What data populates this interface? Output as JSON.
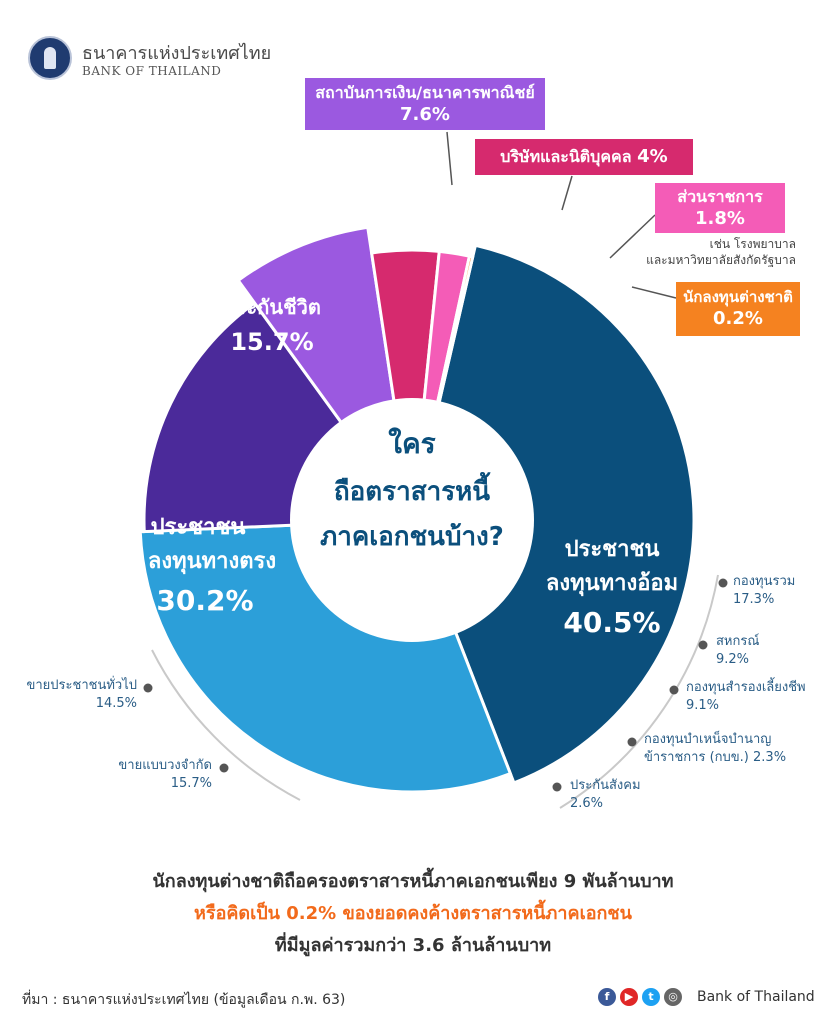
{
  "header": {
    "brand_th": "ธนาคารแห่งประเทศไทย",
    "brand_en": "BANK OF THAILAND"
  },
  "center": {
    "line1": "ใคร",
    "line2": "ถือตราสารหนี้",
    "line3": "ภาคเอกชนบ้าง?"
  },
  "chart_data": {
    "type": "pie",
    "variant": "donut",
    "title": "ใครถือตราสารหนี้ภาคเอกชนบ้าง?",
    "unit": "%",
    "slices": [
      {
        "label": "ประชาชนลงทุนทางอ้อม",
        "value": 40.5,
        "color": "#0b4f7c"
      },
      {
        "label": "ประชาชนลงทุนทางตรง",
        "value": 30.2,
        "color": "#2c9fd9"
      },
      {
        "label": "ประกันชีวิต",
        "value": 15.7,
        "color": "#4b2a9a"
      },
      {
        "label": "สถาบันการเงิน/ธนาคารพาณิชย์",
        "value": 7.6,
        "color": "#9b59e0"
      },
      {
        "label": "บริษัทและนิติบุคคล",
        "value": 4,
        "color": "#d62a6e"
      },
      {
        "label": "ส่วนราชการ",
        "value": 1.8,
        "color": "#f45cb7"
      },
      {
        "label": "นักลงทุนต่างชาติ",
        "value": 0.2,
        "color": "#f58220"
      }
    ],
    "breakdown_indirect": [
      {
        "label": "กองทุนรวม",
        "value": 17.3
      },
      {
        "label": "สหกรณ์",
        "value": 9.2
      },
      {
        "label": "กองทุนสำรองเลี้ยงชีพ",
        "value": 9.1
      },
      {
        "label": "กองทุนบำเหน็จบำนาญข้าราชการ (กบข.)",
        "value": 2.3
      },
      {
        "label": "ประกันสังคม",
        "value": 2.6
      }
    ],
    "breakdown_direct": [
      {
        "label": "ขายประชาชนทั่วไป",
        "value": 14.5
      },
      {
        "label": "ขายแบบวงจำกัด",
        "value": 15.7
      }
    ]
  },
  "labels": {
    "indirect_l1": "ประชาชน",
    "indirect_l2": "ลงทุนทางอ้อม",
    "indirect_pct": "40.5%",
    "direct_l1": "ประชาชน",
    "direct_l2": "ลงทุนทางตรง",
    "direct_pct": "30.2%",
    "life_l1": "ประกันชีวิต",
    "life_pct": "15.7%",
    "fin_l1": "สถาบันการเงิน/ธนาคารพาณิชย์",
    "fin_pct": "7.6%",
    "corp": "บริษัทและนิติบุคคล",
    "corp_pct": "4%",
    "gov_l1": "ส่วนราชการ",
    "gov_pct": "1.8%",
    "gov_note1": "เช่น โรงพยาบาล",
    "gov_note2": "และมหาวิทยาลัยสังกัดรัฐบาล",
    "foreign_l1": "นักลงทุนต่างชาติ",
    "foreign_pct": "0.2%",
    "mf": "กองทุนรวม",
    "mf_pct": "17.3%",
    "coop": "สหกรณ์",
    "coop_pct": "9.2%",
    "pvd": "กองทุนสำรองเลี้ยงชีพ",
    "pvd_pct": "9.1%",
    "gpf1": "กองทุนบำเหน็จบำนาญ",
    "gpf2": "ข้าราชการ (กบข.)",
    "gpf_pct": "2.3%",
    "sso": "ประกันสังคม",
    "sso_pct": "2.6%",
    "public": "ขายประชาชนทั่วไป",
    "public_pct": "14.5%",
    "pp": "ขายแบบวงจำกัด",
    "pp_pct": "15.7%"
  },
  "summary": {
    "line1": "นักลงทุนต่างชาติถือครองตราสารหนี้ภาคเอกชนเพียง 9 พันล้านบาท",
    "line2": "หรือคิดเป็น 0.2% ของยอดคงค้างตราสารหนี้ภาคเอกชน",
    "line3": "ที่มีมูลค่ารวมกว่า 3.6 ล้านล้านบาท",
    "line2_color": "#f26a1b"
  },
  "footer": {
    "source": "ที่มา : ธนาคารแห่งประเทศไทย (ข้อมูลเดือน ก.พ. 63)",
    "brand": "Bank of Thailand",
    "icons": [
      "facebook-icon",
      "youtube-icon",
      "twitter-icon",
      "web-icon"
    ]
  }
}
